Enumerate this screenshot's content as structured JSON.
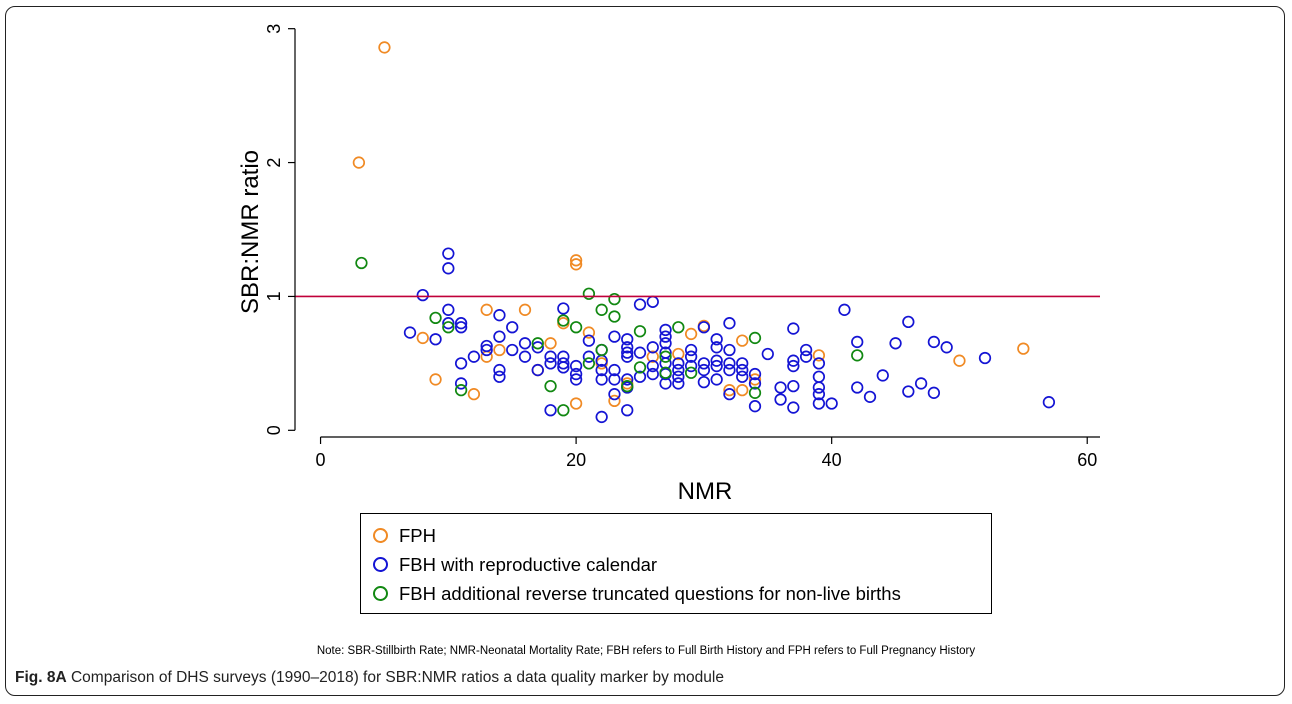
{
  "chart_data": {
    "type": "scatter",
    "xlabel": "NMR",
    "ylabel": "SBR:NMR ratio",
    "xlim": [
      -2,
      61
    ],
    "ylim": [
      -0.05,
      3.05
    ],
    "xticks": [
      "0",
      "20",
      "40",
      "60"
    ],
    "xtick_values": [
      0,
      20,
      40,
      60
    ],
    "yticks": [
      "0",
      "1",
      "2",
      "3"
    ],
    "ytick_values": [
      0,
      1,
      2,
      3
    ],
    "reference_line": {
      "y": 1,
      "color": "#c0003a"
    },
    "grid": false,
    "legend_position": "bottom",
    "series": [
      {
        "name": "FPH",
        "color": "#f08a24",
        "points": [
          [
            3,
            2.0
          ],
          [
            5,
            2.86
          ],
          [
            8,
            0.69
          ],
          [
            9,
            0.38
          ],
          [
            12,
            0.27
          ],
          [
            13,
            0.9
          ],
          [
            13,
            0.55
          ],
          [
            14,
            0.6
          ],
          [
            16,
            0.9
          ],
          [
            17,
            0.45
          ],
          [
            18,
            0.65
          ],
          [
            19,
            0.8
          ],
          [
            20,
            1.27
          ],
          [
            20,
            1.24
          ],
          [
            20,
            0.2
          ],
          [
            21,
            0.73
          ],
          [
            22,
            0.5
          ],
          [
            23,
            0.22
          ],
          [
            24,
            0.35
          ],
          [
            26,
            0.55
          ],
          [
            28,
            0.57
          ],
          [
            29,
            0.72
          ],
          [
            30,
            0.78
          ],
          [
            32,
            0.3
          ],
          [
            33,
            0.67
          ],
          [
            33,
            0.3
          ],
          [
            34,
            0.38
          ],
          [
            39,
            0.56
          ],
          [
            50,
            0.52
          ],
          [
            55,
            0.61
          ]
        ]
      },
      {
        "name": "FBH with reproductive calendar",
        "color": "#1414d4",
        "points": [
          [
            7,
            0.73
          ],
          [
            8,
            1.01
          ],
          [
            9,
            0.68
          ],
          [
            10,
            1.32
          ],
          [
            10,
            1.21
          ],
          [
            10,
            0.9
          ],
          [
            10,
            0.8
          ],
          [
            11,
            0.8
          ],
          [
            11,
            0.77
          ],
          [
            11,
            0.5
          ],
          [
            11,
            0.35
          ],
          [
            12,
            0.55
          ],
          [
            13,
            0.63
          ],
          [
            13,
            0.6
          ],
          [
            14,
            0.86
          ],
          [
            14,
            0.7
          ],
          [
            14,
            0.45
          ],
          [
            14,
            0.4
          ],
          [
            15,
            0.77
          ],
          [
            15,
            0.6
          ],
          [
            16,
            0.65
          ],
          [
            16,
            0.55
          ],
          [
            17,
            0.62
          ],
          [
            17,
            0.45
          ],
          [
            18,
            0.55
          ],
          [
            18,
            0.5
          ],
          [
            18,
            0.15
          ],
          [
            19,
            0.91
          ],
          [
            19,
            0.55
          ],
          [
            19,
            0.5
          ],
          [
            19,
            0.47
          ],
          [
            20,
            0.48
          ],
          [
            20,
            0.42
          ],
          [
            20,
            0.38
          ],
          [
            21,
            0.67
          ],
          [
            21,
            0.55
          ],
          [
            22,
            0.6
          ],
          [
            22,
            0.52
          ],
          [
            22,
            0.45
          ],
          [
            22,
            0.38
          ],
          [
            22,
            0.1
          ],
          [
            23,
            0.7
          ],
          [
            23,
            0.45
          ],
          [
            23,
            0.38
          ],
          [
            23,
            0.27
          ],
          [
            24,
            0.68
          ],
          [
            24,
            0.62
          ],
          [
            24,
            0.58
          ],
          [
            24,
            0.55
          ],
          [
            24,
            0.38
          ],
          [
            24,
            0.32
          ],
          [
            24,
            0.15
          ],
          [
            25,
            0.94
          ],
          [
            25,
            0.58
          ],
          [
            25,
            0.4
          ],
          [
            26,
            0.96
          ],
          [
            26,
            0.62
          ],
          [
            26,
            0.48
          ],
          [
            26,
            0.42
          ],
          [
            27,
            0.75
          ],
          [
            27,
            0.7
          ],
          [
            27,
            0.65
          ],
          [
            27,
            0.58
          ],
          [
            27,
            0.5
          ],
          [
            27,
            0.42
          ],
          [
            27,
            0.35
          ],
          [
            28,
            0.5
          ],
          [
            28,
            0.45
          ],
          [
            28,
            0.4
          ],
          [
            28,
            0.35
          ],
          [
            29,
            0.6
          ],
          [
            29,
            0.55
          ],
          [
            29,
            0.48
          ],
          [
            30,
            0.77
          ],
          [
            30,
            0.5
          ],
          [
            30,
            0.45
          ],
          [
            30,
            0.36
          ],
          [
            31,
            0.68
          ],
          [
            31,
            0.62
          ],
          [
            31,
            0.52
          ],
          [
            31,
            0.48
          ],
          [
            31,
            0.38
          ],
          [
            32,
            0.8
          ],
          [
            32,
            0.6
          ],
          [
            32,
            0.5
          ],
          [
            32,
            0.45
          ],
          [
            32,
            0.27
          ],
          [
            33,
            0.5
          ],
          [
            33,
            0.45
          ],
          [
            33,
            0.4
          ],
          [
            34,
            0.42
          ],
          [
            34,
            0.35
          ],
          [
            34,
            0.18
          ],
          [
            35,
            0.57
          ],
          [
            36,
            0.32
          ],
          [
            36,
            0.23
          ],
          [
            37,
            0.76
          ],
          [
            37,
            0.52
          ],
          [
            37,
            0.48
          ],
          [
            37,
            0.33
          ],
          [
            37,
            0.17
          ],
          [
            38,
            0.6
          ],
          [
            38,
            0.55
          ],
          [
            39,
            0.5
          ],
          [
            39,
            0.4
          ],
          [
            39,
            0.32
          ],
          [
            39,
            0.27
          ],
          [
            39,
            0.2
          ],
          [
            40,
            0.2
          ],
          [
            41,
            0.9
          ],
          [
            42,
            0.66
          ],
          [
            42,
            0.32
          ],
          [
            43,
            0.25
          ],
          [
            44,
            0.41
          ],
          [
            45,
            0.65
          ],
          [
            46,
            0.81
          ],
          [
            46,
            0.29
          ],
          [
            47,
            0.35
          ],
          [
            48,
            0.66
          ],
          [
            48,
            0.28
          ],
          [
            49,
            0.62
          ],
          [
            52,
            0.54
          ],
          [
            57,
            0.21
          ]
        ]
      },
      {
        "name": "FBH additional reverse truncated questions for non-live births",
        "color": "#118811",
        "points": [
          [
            3.2,
            1.25
          ],
          [
            9,
            0.84
          ],
          [
            10,
            0.77
          ],
          [
            11,
            0.3
          ],
          [
            17,
            0.65
          ],
          [
            18,
            0.33
          ],
          [
            19,
            0.82
          ],
          [
            19,
            0.15
          ],
          [
            20,
            0.77
          ],
          [
            21,
            1.02
          ],
          [
            21,
            0.5
          ],
          [
            22,
            0.9
          ],
          [
            22,
            0.6
          ],
          [
            23,
            0.98
          ],
          [
            23,
            0.85
          ],
          [
            24,
            0.33
          ],
          [
            25,
            0.74
          ],
          [
            25,
            0.47
          ],
          [
            27,
            0.55
          ],
          [
            27,
            0.43
          ],
          [
            28,
            0.77
          ],
          [
            29,
            0.43
          ],
          [
            34,
            0.69
          ],
          [
            34,
            0.28
          ],
          [
            42,
            0.56
          ]
        ]
      }
    ]
  },
  "legend": {
    "items": [
      {
        "label": "FPH",
        "color": "#f08a24"
      },
      {
        "label": "FBH with reproductive calendar",
        "color": "#1414d4"
      },
      {
        "label": "FBH additional reverse truncated questions for non-live births",
        "color": "#118811"
      }
    ]
  },
  "note": "Note: SBR-Stillbirth Rate; NMR-Neonatal Mortality Rate; FBH refers to Full Birth History and FPH refers to Full Pregnancy History",
  "caption": {
    "label": "Fig. 8A",
    "text": " Comparison of DHS surveys (1990–2018) for SBR:NMR ratios a data quality marker by module"
  }
}
